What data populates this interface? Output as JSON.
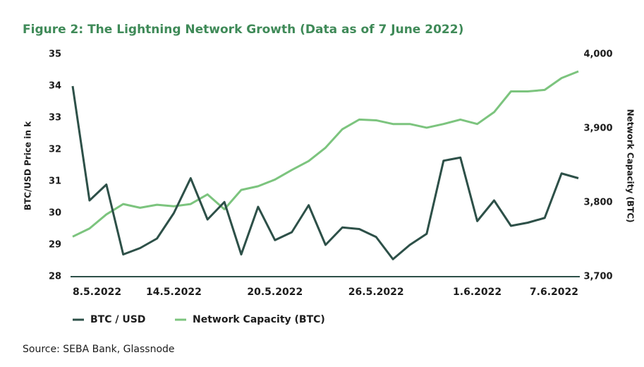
{
  "chart_data": {
    "type": "line",
    "title": "Figure 2: The Lightning Network Growth (Data as of 7 June 2022)",
    "y_label": "BTC/USD Price in k",
    "y2_label": "Network Capacity (BTC)",
    "source": "Source: SEBA Bank, Glassnode",
    "categories": [
      "8.5.2022",
      null,
      null,
      null,
      null,
      null,
      "14.5.2022",
      null,
      null,
      null,
      null,
      null,
      "20.5.2022",
      null,
      null,
      null,
      null,
      null,
      "26.5.2022",
      null,
      null,
      null,
      null,
      null,
      "1.6.2022",
      null,
      null,
      null,
      null,
      null,
      "7.6.2022"
    ],
    "ylim": [
      28,
      35
    ],
    "yticks": [
      28,
      29,
      30,
      31,
      32,
      33,
      34,
      35
    ],
    "y2lim": [
      3700,
      4000
    ],
    "y2ticks": [
      {
        "value": 3700,
        "label": "3,700"
      },
      {
        "value": 3800,
        "label": "3,800"
      },
      {
        "value": 3900,
        "label": "3,900"
      },
      {
        "value": 4000,
        "label": "4,000"
      }
    ],
    "series": [
      {
        "name": "BTC / USD",
        "color": "#2d5048",
        "values": [
          34.0,
          30.4,
          30.9,
          28.7,
          28.9,
          29.2,
          30.0,
          31.1,
          29.8,
          30.35,
          28.7,
          30.2,
          29.15,
          29.4,
          30.25,
          29.0,
          29.55,
          29.5,
          29.25,
          28.55,
          29.0,
          29.35,
          31.65,
          31.75,
          29.75,
          30.4,
          29.6,
          29.7,
          29.85,
          31.25,
          31.1
        ]
      },
      {
        "name": "Network Capacity (BTC)",
        "color": "#7cc47e",
        "axis": "y2",
        "values": [
          3754,
          3765,
          3784,
          3798,
          3793,
          3797,
          3795,
          3798,
          3811,
          3791,
          3817,
          3822,
          3831,
          3844,
          3856,
          3874,
          3899,
          3912,
          3911,
          3906,
          3906,
          3901,
          3906,
          3912,
          3906,
          3922,
          3950,
          3950,
          3952,
          3968,
          3977
        ]
      }
    ]
  }
}
